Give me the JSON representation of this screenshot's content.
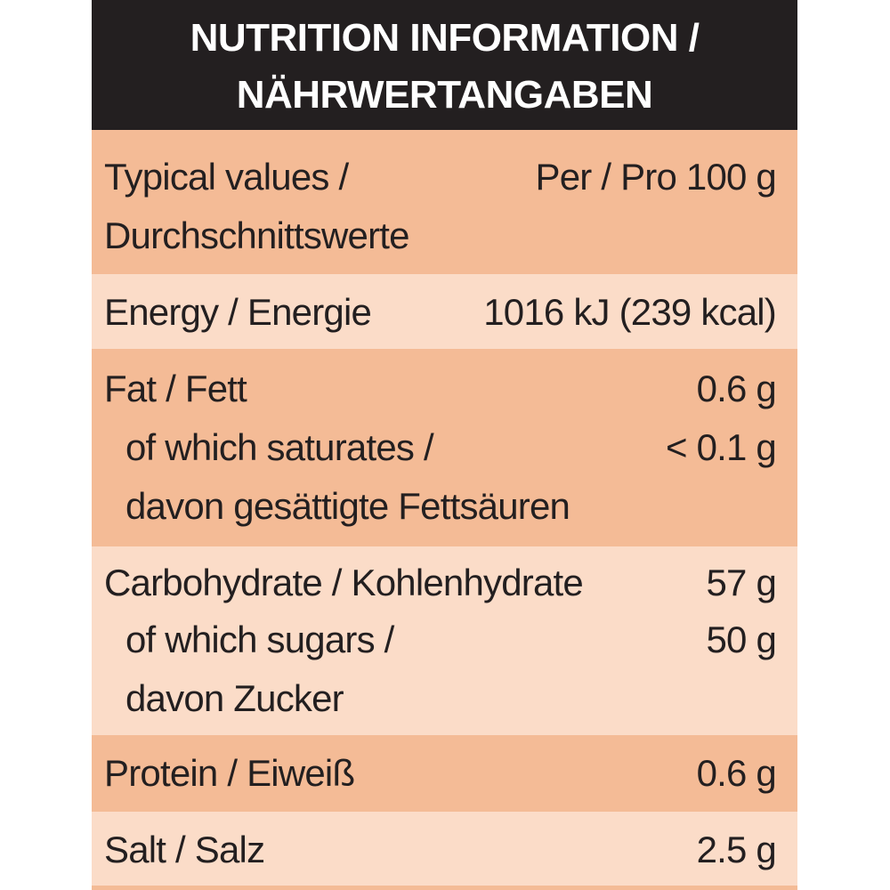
{
  "header": {
    "line1": "NUTRITION INFORMATION /",
    "line2": "NÄHRWERTANGABEN"
  },
  "typical": {
    "label_line1": "Typical values /",
    "label_line2": "Durchschnittswerte",
    "per": "Per / Pro 100 g"
  },
  "energy": {
    "label": "Energy / Energie",
    "value": "1016 kJ (239 kcal)"
  },
  "fat": {
    "label": "Fat / Fett",
    "value": "0.6 g",
    "sub_label_line1": "of which saturates /",
    "sub_label_line2": "davon gesättigte Fettsäuren",
    "sub_value": "< 0.1 g"
  },
  "carbohydrate": {
    "label": "Carbohydrate / Kohlenhydrate",
    "value": "57 g",
    "sub_label_line1": "of which sugars /",
    "sub_label_line2": "davon Zucker",
    "sub_value": "50 g"
  },
  "protein": {
    "label": "Protein / Eiweiß",
    "value": "0.6 g"
  },
  "salt": {
    "label": "Salt / Salz",
    "value": "2.5 g"
  },
  "colors": {
    "header_bg": "#231f20",
    "row_dark": "#f4bb96",
    "row_light": "#fbdcc8"
  }
}
